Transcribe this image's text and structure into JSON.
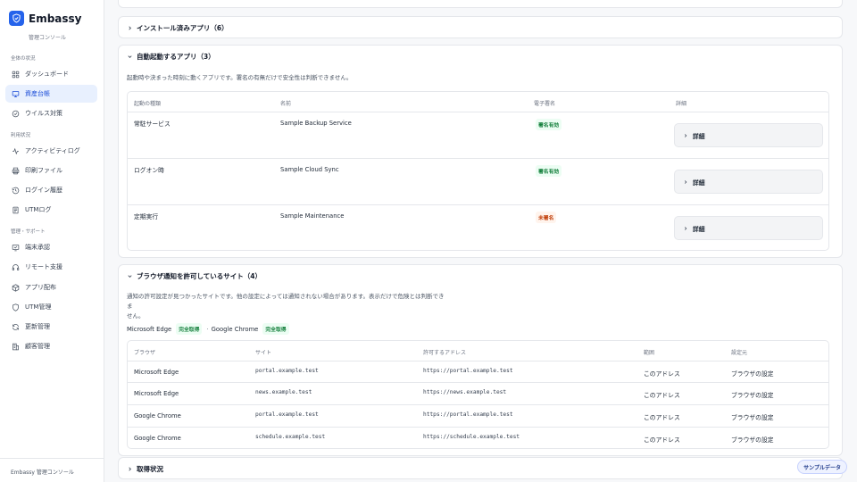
{
  "brand": {
    "name": "Embassy",
    "subtitle": "管理コンソール"
  },
  "sidebar": {
    "section_overall": "全体の状況",
    "section_usage": "利用状況",
    "section_admin": "管理・サポート",
    "items": [
      {
        "label": "ダッシュボード",
        "icon": "grid-icon"
      },
      {
        "label": "資産台帳",
        "icon": "monitor-icon",
        "active": true
      },
      {
        "label": "ウイルス対策",
        "icon": "check-circle-icon"
      },
      {
        "label": "アクティビティログ",
        "icon": "activity-icon"
      },
      {
        "label": "印刷ファイル",
        "icon": "printer-icon"
      },
      {
        "label": "ログイン履歴",
        "icon": "history-icon"
      },
      {
        "label": "UTMログ",
        "icon": "document-icon"
      },
      {
        "label": "端末承認",
        "icon": "approval-icon"
      },
      {
        "label": "リモート支援",
        "icon": "headset-icon"
      },
      {
        "label": "アプリ配布",
        "icon": "package-icon"
      },
      {
        "label": "UTM管理",
        "icon": "shield-icon"
      },
      {
        "label": "更新管理",
        "icon": "refresh-icon"
      },
      {
        "label": "顧客管理",
        "icon": "building-icon"
      }
    ],
    "footer": "Embassy 管理コンソール"
  },
  "installed_apps": {
    "title": "インストール済みアプリ（6）"
  },
  "autostart": {
    "title": "自動起動するアプリ（3）",
    "description": "起動時や決まった時刻に動くアプリです。署名の有無だけで安全性は判断できません。",
    "headers": [
      "起動の種類",
      "名前",
      "電子署名",
      "詳細"
    ],
    "rows": [
      {
        "type": "常駐サービス",
        "name": "Sample Backup Service",
        "signature": "署名有効",
        "sig_status": "ok",
        "detail": "詳細"
      },
      {
        "type": "ログオン時",
        "name": "Sample Cloud Sync",
        "signature": "署名有効",
        "sig_status": "ok",
        "detail": "詳細"
      },
      {
        "type": "定期実行",
        "name": "Sample Maintenance",
        "signature": "未署名",
        "sig_status": "warn",
        "detail": "詳細"
      }
    ]
  },
  "notifications": {
    "title": "ブラウザ通知を許可しているサイト（4）",
    "description_line1": "通知の許可設定が見つかったサイトです。他の設定によっては通知されない場合があります。表示だけで危険とは判断できま",
    "description_line2": "せん。",
    "browser_edge": "Microsoft Edge",
    "edge_status": "完全取得",
    "separator": "·",
    "browser_chrome": "Google Chrome",
    "chrome_status": "完全取得",
    "headers": [
      "ブラウザ",
      "サイト",
      "許可するアドレス",
      "範囲",
      "設定元"
    ],
    "rows": [
      {
        "browser": "Microsoft Edge",
        "site": "portal.example.test",
        "address": "https://portal.example.test",
        "scope": "このアドレス",
        "source": "ブラウザの設定"
      },
      {
        "browser": "Microsoft Edge",
        "site": "news.example.test",
        "address": "https://news.example.test",
        "scope": "このアドレス",
        "source": "ブラウザの設定"
      },
      {
        "browser": "Google Chrome",
        "site": "portal.example.test",
        "address": "https://portal.example.test",
        "scope": "このアドレス",
        "source": "ブラウザの設定"
      },
      {
        "browser": "Google Chrome",
        "site": "schedule.example.test",
        "address": "https://schedule.example.test",
        "scope": "このアドレス",
        "source": "ブラウザの設定"
      }
    ]
  },
  "acquisition": {
    "title": "取得状況"
  },
  "sample_chip": "サンプルデータ"
}
